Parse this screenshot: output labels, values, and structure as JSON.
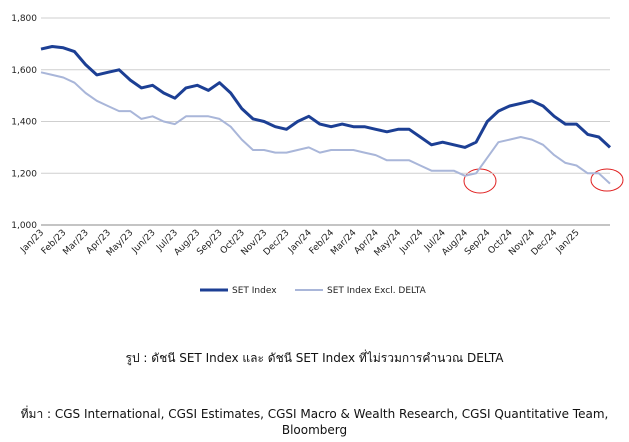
{
  "chart_data": {
    "type": "line",
    "x": [
      "Jan/23",
      null,
      "Feb/23",
      null,
      "Mar/23",
      null,
      "Apr/23",
      null,
      "May/23",
      null,
      "Jun/23",
      null,
      "Jul/23",
      null,
      "Aug/23",
      null,
      "Sep/23",
      null,
      "Oct/23",
      null,
      "Nov/23",
      null,
      "Dec/23",
      null,
      "Jan/24",
      null,
      "Feb/24",
      null,
      "Mar/24",
      null,
      "Apr/24",
      null,
      "May/24",
      null,
      "Jun/24",
      null,
      "Jul/24",
      null,
      "Aug/24",
      null,
      "Sep/24",
      null,
      "Oct/24",
      null,
      "Nov/24",
      null,
      "Dec/24",
      null,
      "Jan/25",
      null,
      null,
      null
    ],
    "series": [
      {
        "name": "SET Index",
        "color": "#1c3f94",
        "values": [
          1680,
          1690,
          1685,
          1670,
          1620,
          1580,
          1590,
          1600,
          1560,
          1530,
          1540,
          1510,
          1490,
          1530,
          1540,
          1520,
          1550,
          1510,
          1450,
          1410,
          1400,
          1380,
          1370,
          1400,
          1420,
          1390,
          1380,
          1390,
          1380,
          1380,
          1370,
          1360,
          1370,
          1370,
          1340,
          1310,
          1320,
          1310,
          1300,
          1320,
          1400,
          1440,
          1460,
          1470,
          1480,
          1460,
          1420,
          1390,
          1390,
          1350,
          1340,
          1300
        ]
      },
      {
        "name": "SET Index Excl. DELTA",
        "color": "#a9b6d9",
        "values": [
          1590,
          1580,
          1570,
          1550,
          1510,
          1480,
          1460,
          1440,
          1440,
          1410,
          1420,
          1400,
          1390,
          1420,
          1420,
          1420,
          1410,
          1380,
          1330,
          1290,
          1290,
          1280,
          1280,
          1290,
          1300,
          1280,
          1290,
          1290,
          1290,
          1280,
          1270,
          1250,
          1250,
          1250,
          1230,
          1210,
          1210,
          1210,
          1190,
          1200,
          1260,
          1320,
          1330,
          1340,
          1330,
          1310,
          1270,
          1240,
          1230,
          1200,
          1200,
          1160
        ]
      }
    ],
    "ylim": [
      1000,
      1800
    ],
    "yticks": [
      {
        "value": 1000,
        "label": "1,000"
      },
      {
        "value": 1200,
        "label": "1,200"
      },
      {
        "value": 1400,
        "label": "1,400"
      },
      {
        "value": 1600,
        "label": "1,600"
      },
      {
        "value": 1800,
        "label": "1,800"
      }
    ],
    "grid": true,
    "legend": "bottom"
  },
  "caption": "รูป : ดัชนี SET Index และ ดัชนี SET Index ที่ไม่รวมการคำนวณ DELTA",
  "source": "ที่มา : CGS International, CGSI Estimates, CGSI Macro & Wealth Research, CGSI Quantitative Team, Bloomberg"
}
